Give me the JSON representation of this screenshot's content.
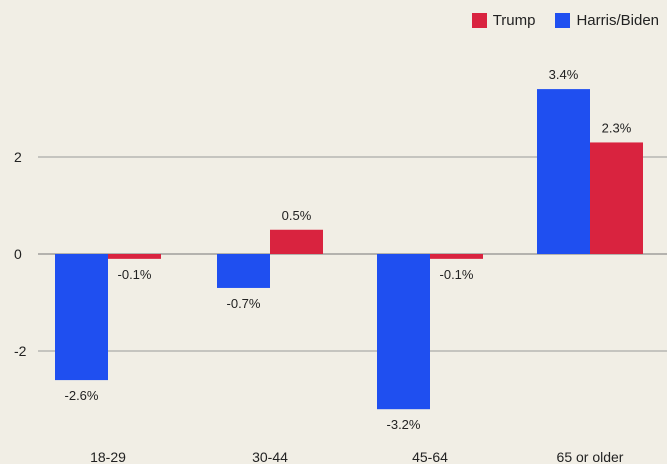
{
  "chart_data": {
    "type": "bar",
    "categories": [
      "18-29",
      "30-44",
      "45-64",
      "65 or older"
    ],
    "series": [
      {
        "name": "Harris/Biden",
        "color": "#1f4ff0",
        "values": [
          -2.6,
          -0.7,
          -3.2,
          3.4
        ],
        "labels": [
          "-2.6%",
          "-0.7%",
          "-3.2%",
          "3.4%"
        ]
      },
      {
        "name": "Trump",
        "color": "#d9233f",
        "values": [
          -0.1,
          0.5,
          -0.1,
          2.3
        ],
        "labels": [
          "-0.1%",
          "0.5%",
          "-0.1%",
          "2.3%"
        ]
      }
    ],
    "yticks": [
      2,
      0,
      -2
    ],
    "ytick_labels": [
      "2",
      "0",
      "-2"
    ],
    "ylim": [
      -3.6,
      4.1
    ],
    "grid": "horizontal",
    "legend_position": "top-right",
    "legend_order": [
      "Trump",
      "Harris/Biden"
    ]
  }
}
